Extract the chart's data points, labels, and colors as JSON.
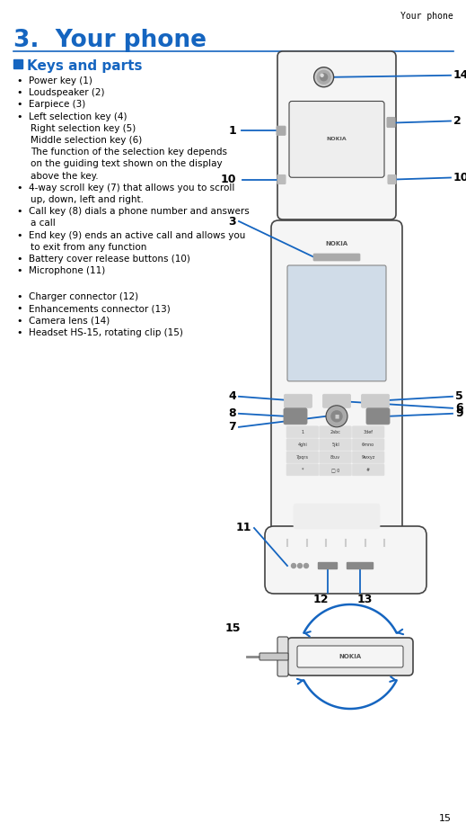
{
  "header_text": "Your phone",
  "chapter_num": "3.",
  "chapter_title": "Your phone",
  "section_title": "Keys and parts",
  "bullet_items": [
    {
      "bullet": true,
      "indent": 0,
      "text": "Power key (1)"
    },
    {
      "bullet": true,
      "indent": 0,
      "text": "Loudspeaker (2)"
    },
    {
      "bullet": true,
      "indent": 0,
      "text": "Earpiece (3)"
    },
    {
      "bullet": true,
      "indent": 0,
      "text": "Left selection key (4)"
    },
    {
      "bullet": false,
      "indent": 1,
      "text": "Right selection key (5)"
    },
    {
      "bullet": false,
      "indent": 1,
      "text": "Middle selection key (6)"
    },
    {
      "bullet": false,
      "indent": 1,
      "text": "The function of the selection key depends"
    },
    {
      "bullet": false,
      "indent": 1,
      "text": "on the guiding text shown on the display"
    },
    {
      "bullet": false,
      "indent": 1,
      "text": "above the key."
    },
    {
      "bullet": true,
      "indent": 0,
      "text": "4-way scroll key (7) that allows you to scroll"
    },
    {
      "bullet": false,
      "indent": 1,
      "text": "up, down, left and right."
    },
    {
      "bullet": true,
      "indent": 0,
      "text": "Call key (8) dials a phone number and answers"
    },
    {
      "bullet": false,
      "indent": 1,
      "text": "a call"
    },
    {
      "bullet": true,
      "indent": 0,
      "text": "End key (9) ends an active call and allows you"
    },
    {
      "bullet": false,
      "indent": 1,
      "text": "to exit from any function"
    },
    {
      "bullet": true,
      "indent": 0,
      "text": "Battery cover release buttons (10)"
    },
    {
      "bullet": true,
      "indent": 0,
      "text": "Microphone (11)"
    },
    {
      "bullet": false,
      "indent": 0,
      "text": ""
    },
    {
      "bullet": false,
      "indent": 0,
      "text": ""
    },
    {
      "bullet": true,
      "indent": 0,
      "text": "Charger connector (12)"
    },
    {
      "bullet": true,
      "indent": 0,
      "text": "Enhancements connector (13)"
    },
    {
      "bullet": true,
      "indent": 0,
      "text": "Camera lens (14)"
    },
    {
      "bullet": true,
      "indent": 0,
      "text": "Headset HS-15, rotating clip (15)"
    }
  ],
  "footer_page": "15",
  "bg_color": "#ffffff",
  "text_color": "#000000",
  "blue_color": "#1565c0",
  "line_color": "#1565c0",
  "phone_outline": "#444444",
  "phone_fill": "#f5f5f5"
}
